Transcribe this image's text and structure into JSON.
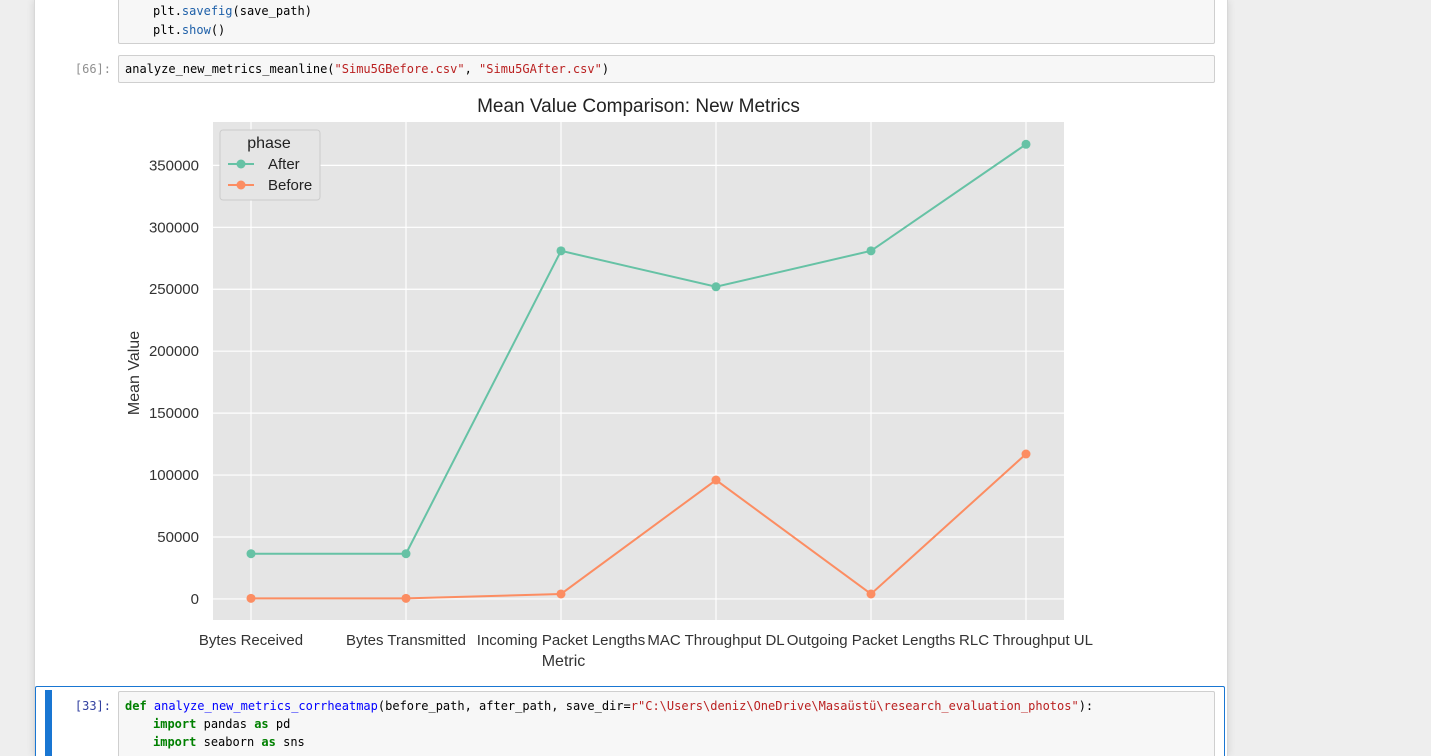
{
  "cells": {
    "top_code": {
      "line1_obj": "plt",
      "line1_method": "savefig",
      "line1_args": "(save_path)",
      "line2_obj": "plt",
      "line2_method": "show",
      "line2_args": "()"
    },
    "cell66": {
      "prompt": "[66]:",
      "fn": "analyze_new_metrics_meanline(",
      "arg1": "\"Simu5GBefore.csv\"",
      "sep": ", ",
      "arg2": "\"Simu5GAfter.csv\"",
      "close": ")"
    },
    "cell33": {
      "prompt": "[33]:",
      "def_kw": "def",
      "def_name": "analyze_new_metrics_corrheatmap",
      "def_params": "(before_path, after_path, save_dir=",
      "def_default": "r\"C:\\Users\\deniz\\OneDrive\\Masaüstü\\research_evaluation_photos\"",
      "def_close": "):",
      "line2_kw": "import",
      "line2_mod": "pandas",
      "line2_as": "as",
      "line2_alias": "pd",
      "line3_kw": "import",
      "line3_mod": "seaborn",
      "line3_as": "as",
      "line3_alias": "sns"
    }
  },
  "chart_data": {
    "type": "line",
    "title": "Mean Value Comparison: New Metrics",
    "xlabel": "Metric",
    "ylabel": "Mean Value",
    "categories": [
      "Bytes Received",
      "Bytes Transmitted",
      "Incoming Packet Lengths",
      "MAC Throughput DL",
      "Outgoing Packet Lengths",
      "RLC Throughput UL"
    ],
    "ylim": [
      -17000,
      385000
    ],
    "yticks": [
      0,
      50000,
      100000,
      150000,
      200000,
      250000,
      300000,
      350000
    ],
    "grid": true,
    "legend_title": "phase",
    "legend_position": "top-left",
    "series": [
      {
        "name": "After",
        "color": "#66c2a5",
        "values": [
          36500,
          36500,
          281000,
          252000,
          281000,
          367000
        ]
      },
      {
        "name": "Before",
        "color": "#fc8d62",
        "values": [
          500,
          500,
          4000,
          96000,
          4000,
          117000
        ]
      }
    ]
  }
}
